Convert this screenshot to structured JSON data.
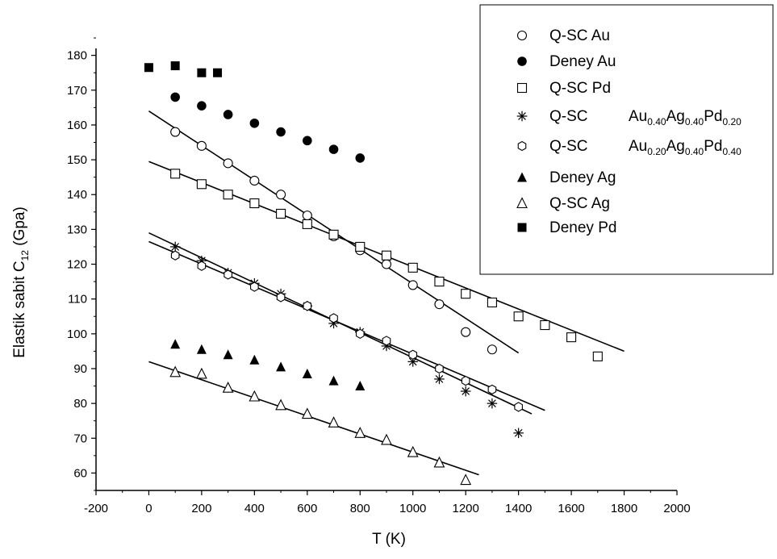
{
  "chart_data": {
    "type": "scatter",
    "xlabel": "T (K)",
    "ylabel_main": "Elastik sabit  C",
    "ylabel_sub": "12",
    "ylabel_unit": " (Gpa)",
    "xlim": [
      -200,
      2000
    ],
    "ylim": [
      55,
      182
    ],
    "xticks": [
      -200,
      0,
      200,
      400,
      600,
      800,
      1000,
      1200,
      1400,
      1600,
      1800,
      2000
    ],
    "yticks": [
      60,
      70,
      80,
      90,
      100,
      110,
      120,
      130,
      140,
      150,
      160,
      170,
      180
    ],
    "legend_position": "top-right",
    "series": [
      {
        "name": "Q-SC    Au",
        "marker": "circle-open",
        "x": [
          100,
          200,
          300,
          400,
          500,
          600,
          700,
          800,
          900,
          1000,
          1100,
          1200,
          1300
        ],
        "y": [
          158,
          154,
          149,
          144,
          140,
          134,
          128,
          124,
          120,
          114,
          108.5,
          100.5,
          95.5
        ],
        "fit": [
          [
            0,
            164
          ],
          [
            1400,
            94.5
          ]
        ]
      },
      {
        "name": "Deney    Au",
        "marker": "circle-filled",
        "x": [
          100,
          200,
          300,
          400,
          500,
          600,
          700,
          800
        ],
        "y": [
          168,
          165.5,
          163,
          160.5,
          158,
          155.5,
          153,
          150.5
        ]
      },
      {
        "name": "Q-SC    Pd",
        "marker": "square-open",
        "x": [
          100,
          200,
          300,
          400,
          500,
          600,
          700,
          800,
          900,
          1000,
          1100,
          1200,
          1300,
          1400,
          1500,
          1600,
          1700
        ],
        "y": [
          146,
          143,
          140,
          137.5,
          134.5,
          131.5,
          128.5,
          125,
          122.5,
          119,
          115,
          111.5,
          109,
          105,
          102.5,
          99,
          93.5
        ],
        "fit": [
          [
            0,
            149.5
          ],
          [
            1800,
            95
          ]
        ]
      },
      {
        "name_prefix": "Q-SC",
        "name_parts": [
          "Au",
          "0.40",
          "Ag",
          "0.40",
          "Pd",
          "0.20"
        ],
        "marker": "asterisk",
        "x": [
          100,
          200,
          300,
          400,
          500,
          600,
          700,
          800,
          900,
          1000,
          1100,
          1200,
          1300,
          1400
        ],
        "y": [
          125,
          121,
          117.5,
          114.5,
          111.5,
          108,
          103,
          100.5,
          96.5,
          92,
          87,
          83.5,
          80,
          71.5
        ],
        "fit": [
          [
            0,
            129
          ],
          [
            1450,
            77
          ]
        ]
      },
      {
        "name_prefix": "Q-SC",
        "name_parts": [
          "Au",
          "0.20",
          "Ag",
          "0.40",
          "Pd",
          "0.40"
        ],
        "marker": "hexagon-open",
        "x": [
          100,
          200,
          300,
          400,
          500,
          600,
          700,
          800,
          900,
          1000,
          1100,
          1200,
          1300,
          1400
        ],
        "y": [
          122.5,
          119.5,
          117,
          113.5,
          110.5,
          108,
          104.5,
          100,
          98,
          94,
          90,
          86.5,
          84,
          79
        ],
        "fit": [
          [
            0,
            126.5
          ],
          [
            1500,
            78
          ]
        ]
      },
      {
        "name": "Deney    Ag",
        "marker": "triangle-filled",
        "x": [
          100,
          200,
          300,
          400,
          500,
          600,
          700,
          800
        ],
        "y": [
          97,
          95.5,
          94,
          92.5,
          90.5,
          88.5,
          86.5,
          85
        ]
      },
      {
        "name": "Q-SC    Ag",
        "marker": "triangle-open",
        "x": [
          100,
          200,
          300,
          400,
          500,
          600,
          700,
          800,
          900,
          1000,
          1100,
          1200
        ],
        "y": [
          89,
          88.5,
          84.5,
          82,
          79.5,
          77,
          74.5,
          71.5,
          69.5,
          66,
          63,
          58
        ],
        "fit": [
          [
            0,
            92
          ],
          [
            1250,
            59.5
          ]
        ]
      },
      {
        "name": "Deney    Pd",
        "marker": "square-filled",
        "x": [
          0,
          100,
          200,
          260
        ],
        "y": [
          176.5,
          177,
          175,
          175
        ]
      }
    ]
  }
}
